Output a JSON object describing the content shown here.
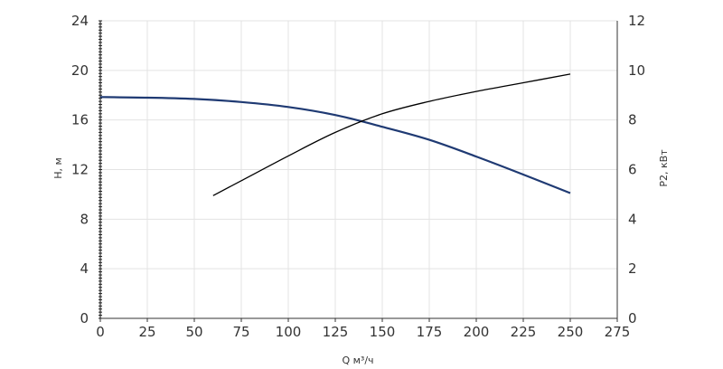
{
  "chart_data": {
    "type": "line",
    "xlabel": "Q м³/ч",
    "ylabel_left": "H, м",
    "ylabel_right": "P2, кВт",
    "xlim": [
      0,
      275
    ],
    "ylim_left": [
      0,
      24
    ],
    "ylim_right": [
      0,
      12
    ],
    "x_ticks": [
      0,
      25,
      50,
      75,
      100,
      125,
      150,
      175,
      200,
      225,
      250,
      275
    ],
    "y_left_ticks": [
      0,
      4,
      8,
      12,
      16,
      20,
      24
    ],
    "y_right_ticks": [
      0,
      2,
      4,
      6,
      8,
      10,
      12
    ],
    "grid": true,
    "series": [
      {
        "axis": "left",
        "color": "#1f3a73",
        "points": [
          [
            0,
            17.85
          ],
          [
            25,
            17.8
          ],
          [
            50,
            17.7
          ],
          [
            75,
            17.45
          ],
          [
            100,
            17.05
          ],
          [
            125,
            16.4
          ],
          [
            150,
            15.45
          ],
          [
            175,
            14.4
          ],
          [
            200,
            13.05
          ],
          [
            225,
            11.6
          ],
          [
            250,
            10.1
          ]
        ]
      },
      {
        "axis": "right",
        "color": "#000000",
        "points": [
          [
            60,
            4.95
          ],
          [
            75,
            5.55
          ],
          [
            100,
            6.55
          ],
          [
            125,
            7.5
          ],
          [
            150,
            8.25
          ],
          [
            175,
            8.75
          ],
          [
            200,
            9.15
          ],
          [
            225,
            9.5
          ],
          [
            250,
            9.85
          ]
        ]
      }
    ]
  }
}
